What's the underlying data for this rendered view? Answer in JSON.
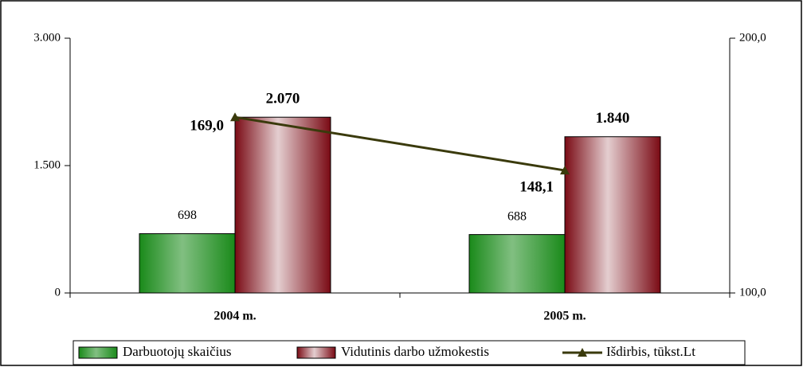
{
  "chart_data": {
    "type": "bar",
    "categories": [
      "2004 m.",
      "2005 m."
    ],
    "series": [
      {
        "name": "Darbuotojų skaičius",
        "color": "#1a8a1a",
        "values": [
          698,
          688
        ]
      },
      {
        "name": "Vidutinis darbo užmokestis",
        "color": "#7a0a14",
        "values": [
          2070,
          1840
        ],
        "value_labels": [
          "2.070",
          "1.840"
        ]
      },
      {
        "name": "Išdirbis, tūkst.Lt",
        "type": "line",
        "axis": "y2",
        "color": "#3a3a0c",
        "values": [
          169.0,
          148.1
        ],
        "value_labels": [
          "169,0",
          "148,1"
        ]
      }
    ],
    "ylim": [
      0,
      3000
    ],
    "yticks": [
      0,
      {
        "value": 1500,
        "label": "1.500"
      },
      {
        "value": 3000,
        "label": "3.000"
      }
    ],
    "y2lim": [
      100,
      200
    ],
    "y2ticks": [
      {
        "value": 100,
        "label": "100,0"
      },
      {
        "value": 200,
        "label": "200,0"
      }
    ],
    "legend": "bottom"
  }
}
